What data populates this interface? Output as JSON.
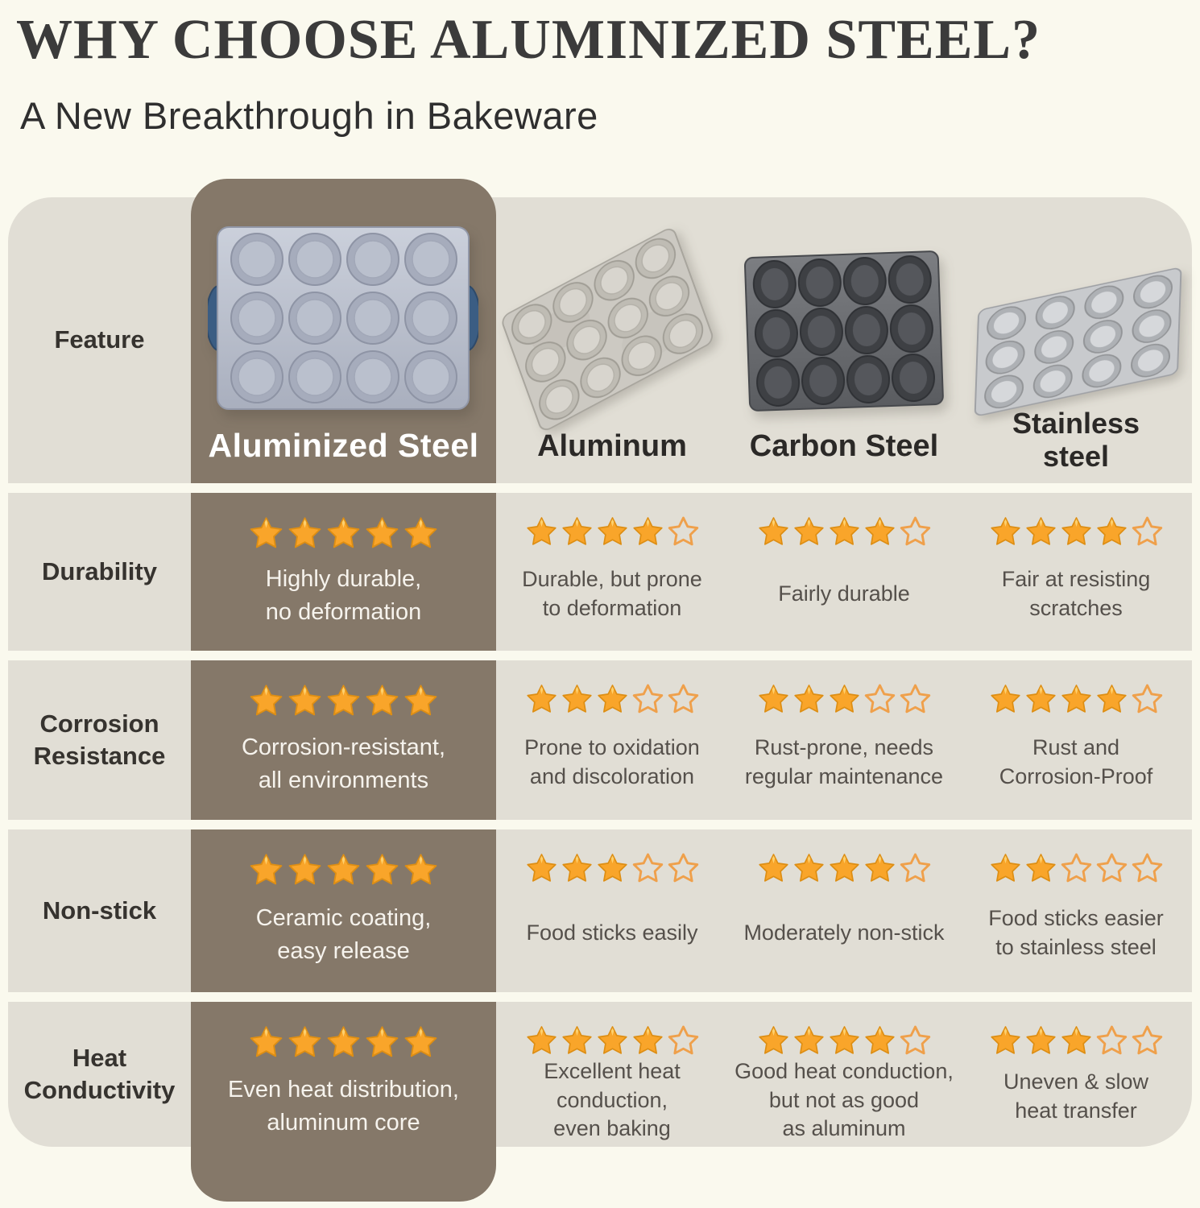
{
  "header": {
    "title": "WHY CHOOSE ALUMINIZED STEEL?",
    "subtitle": "A New Breakthrough in Bakeware"
  },
  "colors": {
    "background": "#FAF9EE",
    "row_bg": "#E1DED5",
    "highlight_bg": "#857869",
    "highlight_text": "#F6F3ED",
    "feature_text": "#36332F",
    "desc_text": "#55504B",
    "header_text": "#2B2927",
    "title_text": "#3B3B3B",
    "star_filled": "#F9A52A",
    "star_stroke": "#DD8E14",
    "star_highlight": "#FFD879",
    "star_empty_stroke": "#EFA04B",
    "pan_handle_blue": "#3B5D83"
  },
  "chart_data": {
    "type": "table",
    "title": "WHY CHOOSE ALUMINIZED STEEL?",
    "subtitle": "A New Breakthrough in Bakeware",
    "row_header": "Feature",
    "rating_scale_max": 5,
    "columns": [
      "Aluminized Steel",
      "Aluminum",
      "Carbon Steel",
      "Stainless steel"
    ],
    "column_labels": [
      "Aluminized Steel",
      "Aluminum",
      "Carbon Steel",
      "Stainless\nsteel"
    ],
    "highlighted_column": "Aluminized Steel",
    "images": [
      "aluminized-steel-muffin-pan",
      "aluminum-muffin-pan",
      "carbon-steel-muffin-pan",
      "stainless-steel-muffin-pan"
    ],
    "rows": [
      {
        "feature": "Durability",
        "ratings": [
          5,
          4,
          4,
          4
        ],
        "notes": [
          "Highly durable,\nno deformation",
          "Durable, but prone\nto deformation",
          "Fairly durable",
          "Fair at resisting\nscratches"
        ]
      },
      {
        "feature": "Corrosion\nResistance",
        "ratings": [
          5,
          3,
          3,
          4
        ],
        "notes": [
          "Corrosion-resistant,\nall environments",
          "Prone to oxidation\nand discoloration",
          "Rust-prone, needs\nregular maintenance",
          "Rust and\nCorrosion-Proof"
        ]
      },
      {
        "feature": "Non-stick",
        "ratings": [
          5,
          3,
          4,
          2
        ],
        "notes": [
          "Ceramic coating,\neasy release",
          "Food sticks easily",
          "Moderately non-stick",
          "Food sticks easier\nto stainless steel"
        ]
      },
      {
        "feature": "Heat\nConductivity",
        "ratings": [
          5,
          4,
          4,
          3
        ],
        "notes": [
          "Even heat distribution,\naluminum core",
          "Excellent heat\nconduction,\neven baking",
          "Good heat conduction,\nbut not as good\nas aluminum",
          "Uneven & slow\nheat transfer"
        ]
      }
    ]
  }
}
